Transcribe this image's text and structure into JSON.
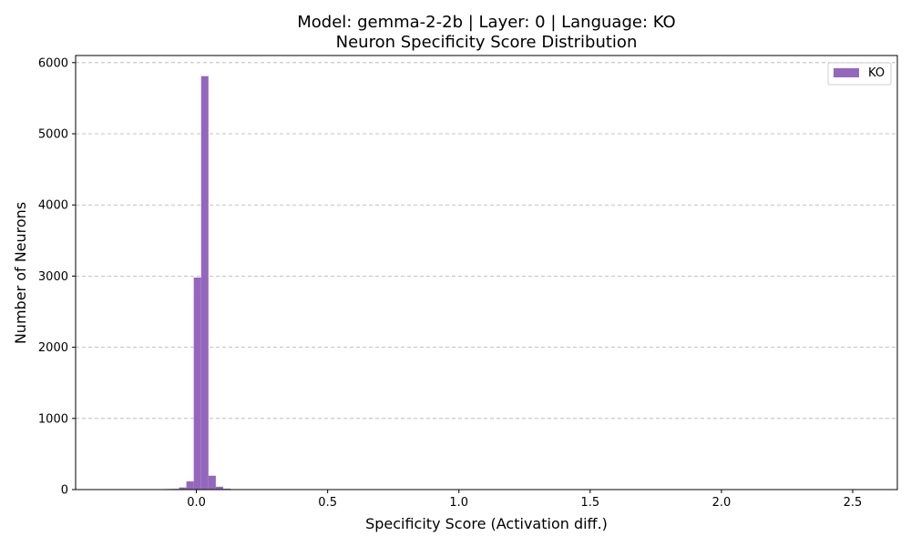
{
  "chart_data": {
    "type": "bar",
    "title_line1": "Model: gemma-2-2b | Layer: 0 | Language: KO",
    "title_line2": "Neuron Specificity Score Distribution",
    "xlabel": "Specificity Score (Activation diff.)",
    "ylabel": "Number of Neurons",
    "xlim": [
      -0.46,
      2.67
    ],
    "ylim": [
      0,
      6100
    ],
    "xticks": [
      0.0,
      0.5,
      1.0,
      1.5,
      2.0,
      2.5
    ],
    "xtick_labels": [
      "0.0",
      "0.5",
      "1.0",
      "1.5",
      "2.0",
      "2.5"
    ],
    "yticks": [
      0,
      1000,
      2000,
      3000,
      4000,
      5000,
      6000
    ],
    "ytick_labels": [
      "0",
      "1000",
      "2000",
      "3000",
      "4000",
      "5000",
      "6000"
    ],
    "grid": "y-dashed",
    "legend_position": "top-right",
    "bin_width": 0.028,
    "series": [
      {
        "name": "KO",
        "color": "#9467bd",
        "bins": [
          {
            "x0": -0.318,
            "count": 5
          },
          {
            "x0": -0.29,
            "count": 2
          },
          {
            "x0": -0.15,
            "count": 3
          },
          {
            "x0": -0.122,
            "count": 8
          },
          {
            "x0": -0.094,
            "count": 10
          },
          {
            "x0": -0.066,
            "count": 30
          },
          {
            "x0": -0.038,
            "count": 115
          },
          {
            "x0": -0.01,
            "count": 2980
          },
          {
            "x0": 0.018,
            "count": 5810
          },
          {
            "x0": 0.046,
            "count": 195
          },
          {
            "x0": 0.074,
            "count": 40
          },
          {
            "x0": 0.102,
            "count": 12
          },
          {
            "x0": 0.13,
            "count": 5
          },
          {
            "x0": 0.186,
            "count": 6
          },
          {
            "x0": 0.214,
            "count": 4
          }
        ]
      }
    ]
  }
}
